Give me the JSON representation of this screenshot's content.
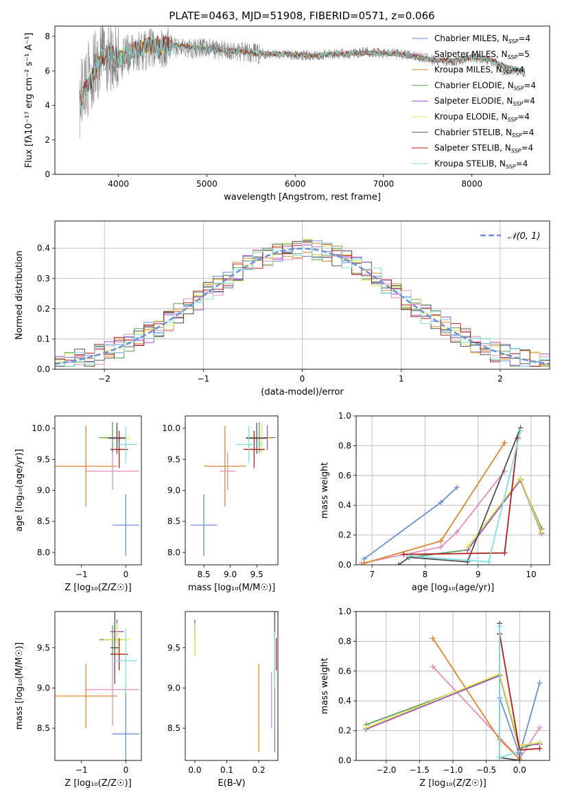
{
  "figure": {
    "title": "PLATE=0463, MJD=51908, FIBERID=0571, z=0.066"
  },
  "chart_data": [
    {
      "id": "spectrum",
      "type": "line",
      "xlabel": "wavelength [Angstrom, rest frame]",
      "ylabel": "Flux [f$_\\lambda$10$^{-17}$ erg cm$^{-2}$ s$^{-1}$ A$^{-1}$]",
      "ylabel_display": "Flux [fλ10⁻¹⁷ erg cm⁻² s⁻¹ A⁻¹]",
      "xlim": [
        3280,
        8880
      ],
      "ylim": [
        0,
        8.6
      ],
      "xticks": [
        4000,
        5000,
        6000,
        7000,
        8000
      ],
      "yticks": [
        0,
        2,
        4,
        6,
        8
      ],
      "data_color": "#808080",
      "data_points": [
        [
          3560,
          4.3
        ],
        [
          3620,
          5.3
        ],
        [
          3700,
          5.8
        ],
        [
          3800,
          6.7
        ],
        [
          3900,
          7.0
        ],
        [
          4000,
          6.6
        ],
        [
          4100,
          6.9
        ],
        [
          4200,
          7.1
        ],
        [
          4400,
          7.3
        ],
        [
          4600,
          7.4
        ],
        [
          4800,
          7.3
        ],
        [
          5000,
          7.3
        ],
        [
          5200,
          7.2
        ],
        [
          5400,
          7.1
        ],
        [
          5600,
          7.0
        ],
        [
          5800,
          7.0
        ],
        [
          6000,
          6.9
        ],
        [
          6200,
          6.9
        ],
        [
          6400,
          7.0
        ],
        [
          6600,
          7.0
        ],
        [
          6800,
          7.1
        ],
        [
          7000,
          7.0
        ],
        [
          7200,
          7.0
        ],
        [
          7400,
          6.8
        ],
        [
          7600,
          6.6
        ],
        [
          7800,
          6.5
        ],
        [
          8000,
          6.8
        ],
        [
          8200,
          6.6
        ],
        [
          8400,
          6.1
        ],
        [
          8600,
          5.9
        ]
      ],
      "model_points": [
        [
          3560,
          4.3
        ],
        [
          3620,
          4.9
        ],
        [
          3700,
          5.6
        ],
        [
          3800,
          6.7
        ],
        [
          3900,
          7.1
        ],
        [
          4000,
          6.7
        ],
        [
          4100,
          7.0
        ],
        [
          4200,
          7.2
        ],
        [
          4400,
          7.5
        ],
        [
          4600,
          7.5
        ],
        [
          4800,
          7.4
        ],
        [
          5000,
          7.3
        ],
        [
          5200,
          7.2
        ],
        [
          5400,
          7.1
        ],
        [
          5600,
          7.0
        ],
        [
          5800,
          7.0
        ],
        [
          6000,
          6.95
        ],
        [
          6200,
          6.9
        ],
        [
          6400,
          6.95
        ],
        [
          6600,
          7.0
        ],
        [
          6800,
          7.05
        ],
        [
          7000,
          7.0
        ],
        [
          7200,
          6.95
        ],
        [
          7400,
          6.8
        ],
        [
          7600,
          6.6
        ],
        [
          7800,
          6.6
        ],
        [
          8000,
          6.8
        ],
        [
          8200,
          6.65
        ],
        [
          8400,
          6.2
        ],
        [
          8600,
          6.0
        ]
      ],
      "legend": [
        {
          "label": "Chabrier MILES, N",
          "sub": "SSP",
          "suffix": "=4",
          "color": "#6a8fd6"
        },
        {
          "label": "Salpeter MILES, N",
          "sub": "SSP",
          "suffix": "=5",
          "color": "#e58cc0"
        },
        {
          "label": "Kroupa MILES, N",
          "sub": "SSP",
          "suffix": "=4",
          "color": "#e0852c"
        },
        {
          "label": "Chabrier ELODIE, N",
          "sub": "SSP",
          "suffix": "=4",
          "color": "#5c9e5c"
        },
        {
          "label": "Salpeter ELODIE, N",
          "sub": "SSP",
          "suffix": "=4",
          "color": "#9b4fc2"
        },
        {
          "label": "Kroupa ELODIE, N",
          "sub": "SSP",
          "suffix": "=4",
          "color": "#e3e84e"
        },
        {
          "label": "Chabrier STELIB, N",
          "sub": "SSP",
          "suffix": "=4",
          "color": "#505050"
        },
        {
          "label": "Salpeter STELIB, N",
          "sub": "SSP",
          "suffix": "=4",
          "color": "#b31b1b"
        },
        {
          "label": "Kroupa STELIB, N",
          "sub": "SSP",
          "suffix": "=4",
          "color": "#7fe0e0"
        }
      ]
    },
    {
      "id": "residuals",
      "type": "step-histogram",
      "xlabel": "(data-model)/error",
      "ylabel": "Normed distribution",
      "xlim": [
        -2.5,
        2.5
      ],
      "ylim": [
        0,
        0.49
      ],
      "xticks": [
        -2,
        -1,
        0,
        1,
        2
      ],
      "yticks": [
        0.0,
        0.1,
        0.2,
        0.3,
        0.4
      ],
      "grid": true,
      "bin_width": 0.1,
      "legend": [
        {
          "label": "𝒩(0, 1)",
          "color": "#6a8fd6",
          "style": "dashed"
        }
      ],
      "gaussian": {
        "mu": 0,
        "sigma": 1
      }
    },
    {
      "id": "age-vs-Z",
      "type": "errorbar",
      "xlabel": "Z [log₁₀(Z/Z☉)]",
      "ylabel": "age  [log₁₀(age/yr)]",
      "xlim": [
        -1.6,
        0.35
      ],
      "ylim": [
        7.8,
        10.2
      ],
      "xticks": [
        -1,
        0
      ],
      "yticks": [
        8.0,
        8.5,
        9.0,
        9.5,
        10.0
      ],
      "points": [
        {
          "x": 0.0,
          "xerr": 0.3,
          "y": 8.44,
          "yerr": 0.5,
          "color": "#6a8fd6"
        },
        {
          "x": -0.9,
          "xerr": 0.7,
          "y": 9.39,
          "yerr": 0.65,
          "color": "#e0852c"
        },
        {
          "x": -0.3,
          "xerr": 0.6,
          "y": 9.31,
          "yerr": 0.3,
          "color": "#e58cc0"
        },
        {
          "x": -0.3,
          "xerr": 0.3,
          "y": 9.85,
          "yerr": 0.25,
          "color": "#5c9e5c"
        },
        {
          "x": -0.2,
          "xerr": 0.15,
          "y": 9.85,
          "yerr": 0.2,
          "color": "#9b4fc2"
        },
        {
          "x": -0.2,
          "xerr": 0.3,
          "y": 9.84,
          "yerr": 0.25,
          "color": "#e3e84e"
        },
        {
          "x": -0.2,
          "xerr": 0.2,
          "y": 9.84,
          "yerr": 0.25,
          "color": "#505050"
        },
        {
          "x": -0.15,
          "xerr": 0.2,
          "y": 9.66,
          "yerr": 0.3,
          "color": "#b31b1b"
        },
        {
          "x": 0.0,
          "xerr": 0.25,
          "y": 9.74,
          "yerr": 0.3,
          "color": "#7fe0e0"
        }
      ]
    },
    {
      "id": "age-vs-mass",
      "type": "errorbar",
      "xlabel": "mass [log₁₀(M/M☉)]",
      "ylabel": "",
      "xlim": [
        8.15,
        9.9
      ],
      "ylim": [
        7.8,
        10.2
      ],
      "xticks": [
        8.5,
        9.0,
        9.5
      ],
      "yticks": [
        8.0,
        8.5,
        9.0,
        9.5,
        10.0
      ],
      "points": [
        {
          "x": 8.5,
          "xerr": 0.25,
          "y": 8.44,
          "yerr": 0.5,
          "color": "#6a8fd6"
        },
        {
          "x": 8.9,
          "xerr": 0.4,
          "y": 9.39,
          "yerr": 0.65,
          "color": "#e0852c"
        },
        {
          "x": 8.95,
          "xerr": 0.15,
          "y": 9.31,
          "yerr": 0.3,
          "color": "#e58cc0"
        },
        {
          "x": 9.55,
          "xerr": 0.25,
          "y": 9.85,
          "yerr": 0.25,
          "color": "#5c9e5c"
        },
        {
          "x": 9.7,
          "xerr": 0.15,
          "y": 9.85,
          "yerr": 0.2,
          "color": "#9b4fc2"
        },
        {
          "x": 9.6,
          "xerr": 0.2,
          "y": 9.84,
          "yerr": 0.25,
          "color": "#e3e84e"
        },
        {
          "x": 9.5,
          "xerr": 0.2,
          "y": 9.84,
          "yerr": 0.25,
          "color": "#505050"
        },
        {
          "x": 9.45,
          "xerr": 0.2,
          "y": 9.66,
          "yerr": 0.3,
          "color": "#b31b1b"
        },
        {
          "x": 9.35,
          "xerr": 0.25,
          "y": 9.74,
          "yerr": 0.3,
          "color": "#7fe0e0"
        }
      ]
    },
    {
      "id": "weight-vs-age",
      "type": "line",
      "xlabel": "age  [log₁₀(age/yr)]",
      "ylabel": "mass weight",
      "xlim": [
        6.7,
        10.35
      ],
      "ylim": [
        0,
        1.0
      ],
      "xticks": [
        7,
        8,
        9,
        10
      ],
      "yticks": [
        0.0,
        0.2,
        0.4,
        0.6,
        0.8,
        1.0
      ],
      "grid": true,
      "series": [
        {
          "color": "#6a8fd6",
          "points": [
            [
              6.85,
              0.04
            ],
            [
              8.3,
              0.42
            ],
            [
              8.6,
              0.52
            ]
          ]
        },
        {
          "color": "#e58cc0",
          "points": [
            [
              6.8,
              0.01
            ],
            [
              8.3,
              0.12
            ],
            [
              8.6,
              0.22
            ],
            [
              9.5,
              0.63
            ]
          ]
        },
        {
          "color": "#e0852c",
          "points": [
            [
              6.85,
              0.01
            ],
            [
              8.3,
              0.16
            ],
            [
              9.5,
              0.82
            ]
          ]
        },
        {
          "color": "#5c9e5c",
          "points": [
            [
              7.7,
              0.05
            ],
            [
              8.8,
              0.1
            ],
            [
              9.8,
              0.57
            ],
            [
              10.2,
              0.24
            ]
          ]
        },
        {
          "color": "#9b4fc2",
          "points": [
            [
              8.8,
              0.1
            ],
            [
              9.8,
              0.57
            ],
            [
              10.2,
              0.21
            ]
          ]
        },
        {
          "color": "#e3e84e",
          "points": [
            [
              8.8,
              0.12
            ],
            [
              9.8,
              0.58
            ],
            [
              10.2,
              0.22
            ]
          ]
        },
        {
          "color": "#505050",
          "points": [
            [
              7.5,
              0.0
            ],
            [
              7.7,
              0.05
            ],
            [
              8.8,
              0.02
            ],
            [
              9.8,
              0.92
            ]
          ]
        },
        {
          "color": "#b31b1b",
          "points": [
            [
              7.6,
              0.07
            ],
            [
              9.5,
              0.08
            ],
            [
              9.75,
              0.85
            ]
          ]
        },
        {
          "color": "#7fe0e0",
          "points": [
            [
              7.7,
              0.06
            ],
            [
              9.2,
              0.02
            ],
            [
              9.8,
              0.9
            ]
          ]
        }
      ]
    },
    {
      "id": "mass-vs-Z",
      "type": "errorbar",
      "xlabel": "Z [log₁₀(Z/Z☉)]",
      "ylabel": "mass [log₁₀(M/M☉)]",
      "xlim": [
        -1.6,
        0.35
      ],
      "ylim": [
        8.1,
        9.95
      ],
      "xticks": [
        -1,
        0
      ],
      "yticks": [
        8.5,
        9.0,
        9.5
      ],
      "points": [
        {
          "x": 0.0,
          "xerr": 0.3,
          "y": 8.43,
          "yerr": 0.6,
          "color": "#6a8fd6"
        },
        {
          "x": -0.9,
          "xerr": 0.7,
          "y": 8.9,
          "yerr": 0.4,
          "color": "#e0852c"
        },
        {
          "x": -0.3,
          "xerr": 0.6,
          "y": 8.98,
          "yerr": 0.45,
          "color": "#e58cc0"
        },
        {
          "x": -0.3,
          "xerr": 0.3,
          "y": 9.6,
          "yerr": 0.18,
          "color": "#5c9e5c"
        },
        {
          "x": -0.2,
          "xerr": 0.15,
          "y": 9.7,
          "yerr": 0.15,
          "color": "#9b4fc2"
        },
        {
          "x": -0.2,
          "xerr": 0.3,
          "y": 9.6,
          "yerr": 0.2,
          "color": "#e3e84e"
        },
        {
          "x": -0.25,
          "xerr": 0.1,
          "y": 9.5,
          "yerr": 0.45,
          "color": "#505050"
        },
        {
          "x": -0.15,
          "xerr": 0.2,
          "y": 9.42,
          "yerr": 0.2,
          "color": "#b31b1b"
        },
        {
          "x": 0.0,
          "xerr": 0.25,
          "y": 9.34,
          "yerr": 0.4,
          "color": "#7fe0e0"
        }
      ]
    },
    {
      "id": "mass-vs-EBV",
      "type": "errorbar",
      "xlabel": "E(B-V)",
      "ylabel": "",
      "xlim": [
        -0.03,
        0.26
      ],
      "ylim": [
        8.1,
        9.95
      ],
      "xticks": [
        0.0,
        0.1,
        0.2
      ],
      "yticks": [
        8.5,
        9.0,
        9.5
      ],
      "points": [
        {
          "x": 0.25,
          "y": 8.6,
          "yerr": 0.4,
          "color": "#6a8fd6"
        },
        {
          "x": 0.2,
          "y": 8.75,
          "yerr": 0.55,
          "color": "#e0852c"
        },
        {
          "x": 0.24,
          "y": 8.85,
          "yerr": 0.35,
          "color": "#e58cc0"
        },
        {
          "x": 0.0,
          "y": 9.6,
          "yerr": 0.2,
          "color": "#5c9e5c"
        },
        {
          "x": 0.0,
          "y": 9.75,
          "yerr": 0.1,
          "color": "#9b4fc2"
        },
        {
          "x": 0.0,
          "y": 9.6,
          "yerr": 0.2,
          "color": "#e3e84e"
        },
        {
          "x": 0.25,
          "y": 9.5,
          "yerr": 0.45,
          "color": "#505050"
        },
        {
          "x": 0.255,
          "y": 9.42,
          "yerr": 0.2,
          "color": "#b31b1b"
        },
        {
          "x": 0.25,
          "y": 9.35,
          "yerr": 0.35,
          "color": "#7fe0e0"
        }
      ]
    },
    {
      "id": "weight-vs-Z",
      "type": "line",
      "xlabel": "Z [log₁₀(Z/Z☉)]",
      "ylabel": "mass weight",
      "xlim": [
        -2.45,
        0.45
      ],
      "ylim": [
        0,
        1.0
      ],
      "xticks": [
        -2.0,
        -1.5,
        -1.0,
        -0.5,
        0.0
      ],
      "yticks": [
        0.0,
        0.2,
        0.4,
        0.6,
        0.8,
        1.0
      ],
      "grid": true,
      "series": [
        {
          "color": "#6a8fd6",
          "points": [
            [
              -0.3,
              0.42
            ],
            [
              0.0,
              0.04
            ],
            [
              0.3,
              0.52
            ]
          ]
        },
        {
          "color": "#e58cc0",
          "points": [
            [
              -1.3,
              0.63
            ],
            [
              0.0,
              0.01
            ],
            [
              0.3,
              0.22
            ]
          ]
        },
        {
          "color": "#e0852c",
          "points": [
            [
              -1.3,
              0.82
            ],
            [
              -0.3,
              0.14
            ],
            [
              0.0,
              0.01
            ]
          ]
        },
        {
          "color": "#5c9e5c",
          "points": [
            [
              -2.3,
              0.24
            ],
            [
              -0.3,
              0.57
            ],
            [
              0.0,
              0.08
            ],
            [
              0.3,
              0.12
            ]
          ]
        },
        {
          "color": "#9b4fc2",
          "points": [
            [
              -2.3,
              0.21
            ],
            [
              -0.3,
              0.57
            ],
            [
              0.0,
              0.1
            ],
            [
              0.3,
              0.11
            ]
          ]
        },
        {
          "color": "#e3e84e",
          "points": [
            [
              -2.3,
              0.22
            ],
            [
              -0.3,
              0.58
            ],
            [
              0.0,
              0.1
            ],
            [
              0.3,
              0.12
            ]
          ]
        },
        {
          "color": "#505050",
          "points": [
            [
              -0.3,
              0.92
            ],
            [
              -0.3,
              0.02
            ],
            [
              0.0,
              0.0
            ],
            [
              0.0,
              0.05
            ]
          ]
        },
        {
          "color": "#b31b1b",
          "points": [
            [
              -0.3,
              0.85
            ],
            [
              0.0,
              0.07
            ],
            [
              0.3,
              0.08
            ]
          ]
        },
        {
          "color": "#7fe0e0",
          "points": [
            [
              -0.3,
              0.9
            ],
            [
              -0.3,
              0.02
            ],
            [
              0.0,
              0.06
            ]
          ]
        }
      ]
    }
  ]
}
